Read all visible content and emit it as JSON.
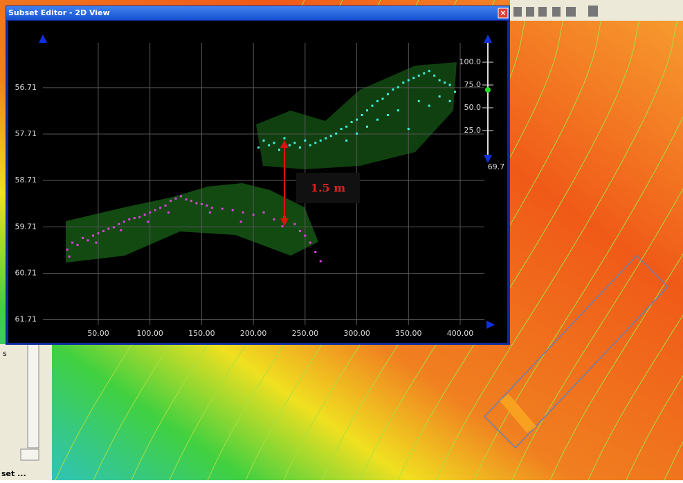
{
  "window": {
    "title": "Subset Editor - 2D View",
    "close": "×"
  },
  "chart_data": {
    "type": "scatter",
    "y_inverted": true,
    "grid": true,
    "xlim": [
      -3.5,
      423.4
    ],
    "ylim": [
      55.64,
      61.82
    ],
    "xticks": [
      {
        "value": 50,
        "label": "50.00"
      },
      {
        "value": 100,
        "label": "100.00"
      },
      {
        "value": 150,
        "label": "150.00"
      },
      {
        "value": 200,
        "label": "200.00"
      },
      {
        "value": 250,
        "label": "250.00"
      },
      {
        "value": 300,
        "label": "300.00"
      },
      {
        "value": 350,
        "label": "350.00"
      },
      {
        "value": 400,
        "label": "400.00"
      }
    ],
    "yticks": [
      56.71,
      57.71,
      58.71,
      59.71,
      60.71,
      61.71
    ],
    "annotation": "1.5 m",
    "series": [
      {
        "color": "#e040e0",
        "x": [
          20,
          25,
          30,
          35,
          40,
          45,
          50,
          55,
          60,
          65,
          70,
          75,
          80,
          85,
          90,
          95,
          100,
          105,
          110,
          115,
          120,
          125,
          130,
          135,
          140,
          145,
          150,
          155,
          160,
          170,
          180,
          190,
          200,
          210,
          220,
          230,
          240,
          245,
          250,
          255,
          260,
          265,
          22,
          48,
          72,
          98,
          118,
          158,
          188,
          228
        ],
        "y": [
          60.2,
          60.05,
          60.1,
          59.95,
          60.0,
          59.9,
          59.85,
          59.8,
          59.75,
          59.72,
          59.65,
          59.6,
          59.55,
          59.52,
          59.5,
          59.45,
          59.4,
          59.35,
          59.3,
          59.25,
          59.15,
          59.1,
          59.05,
          59.12,
          59.15,
          59.2,
          59.22,
          59.25,
          59.3,
          59.32,
          59.35,
          59.4,
          59.45,
          59.4,
          59.55,
          59.5,
          59.65,
          59.8,
          59.9,
          60.05,
          60.25,
          60.45,
          60.35,
          60.05,
          59.78,
          59.6,
          59.4,
          59.4,
          59.6,
          59.7
        ]
      },
      {
        "color": "#40f0e0",
        "x": [
          205,
          210,
          215,
          220,
          225,
          230,
          235,
          240,
          245,
          250,
          255,
          260,
          265,
          270,
          275,
          280,
          285,
          290,
          295,
          300,
          305,
          310,
          315,
          320,
          325,
          330,
          335,
          340,
          345,
          350,
          355,
          360,
          365,
          370,
          375,
          380,
          385,
          390,
          320,
          340,
          360,
          380,
          350,
          330,
          300,
          310,
          370,
          390,
          290,
          395
        ],
        "y": [
          58.0,
          57.85,
          57.95,
          57.9,
          58.05,
          57.8,
          57.95,
          57.9,
          58.0,
          57.85,
          57.95,
          57.9,
          57.85,
          57.8,
          57.75,
          57.7,
          57.6,
          57.55,
          57.45,
          57.4,
          57.3,
          57.2,
          57.1,
          57.0,
          56.95,
          56.85,
          56.75,
          56.7,
          56.6,
          56.55,
          56.5,
          56.45,
          56.4,
          56.35,
          56.45,
          56.55,
          56.6,
          56.65,
          57.4,
          57.2,
          57.0,
          56.9,
          57.6,
          57.3,
          57.7,
          57.55,
          57.1,
          57.0,
          57.85,
          56.8
        ]
      }
    ],
    "slider": {
      "lim": [
        0,
        100
      ],
      "ticks": [
        {
          "value": 100,
          "label": "100.0"
        },
        {
          "value": 75,
          "label": "75.0"
        },
        {
          "value": 50,
          "label": "50.0"
        },
        {
          "value": 25,
          "label": "25.0"
        }
      ],
      "value": 69.7
    }
  },
  "side_panel": {
    "letter": "s",
    "tab": "set ..."
  }
}
